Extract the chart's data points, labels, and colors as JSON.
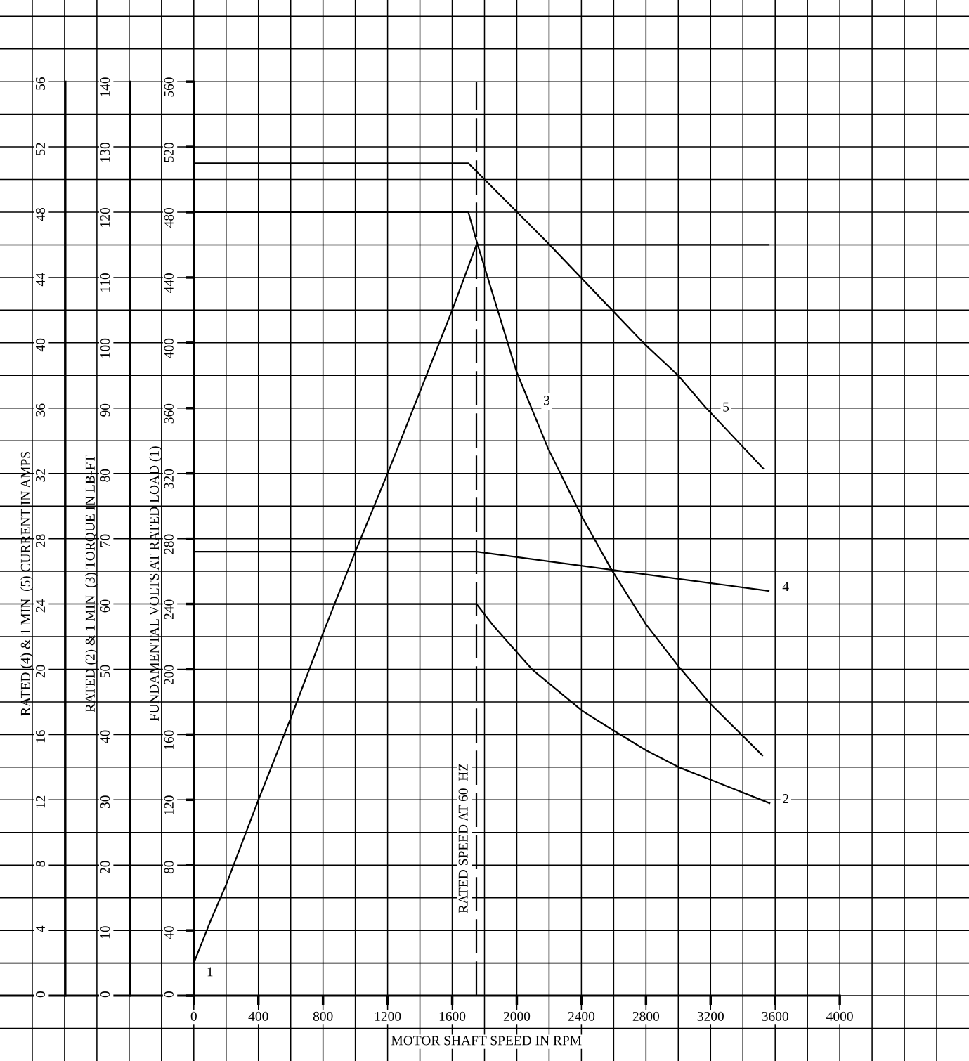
{
  "chart_data": {
    "type": "line",
    "xlabel": "MOTOR SHAFT SPEED IN RPM",
    "ylabel": "FUNDAMENTAL VOLTS AT RATED LOAD (1)",
    "y2label": "RATED (2) & 1 MIN  (3) TORQUE IN LB-FT",
    "y3label": "RATED (4) & 1 MIN  (5) CURRENT IN AMPS",
    "xlim": [
      -1200,
      4800
    ],
    "ylim": [
      -40,
      610
    ],
    "y2lim": [
      -10,
      152.5
    ],
    "y3lim": [
      -4,
      61
    ],
    "xticks": [
      {
        "value": -1000,
        "label": null
      },
      {
        "value": -800,
        "label": null
      },
      {
        "value": -600,
        "label": null
      },
      {
        "value": -400,
        "label": null
      },
      {
        "value": -200,
        "label": null
      },
      0,
      {
        "value": 200,
        "label": null
      },
      400,
      {
        "value": 600,
        "label": null
      },
      800,
      {
        "value": 1000,
        "label": null
      },
      1200,
      {
        "value": 1400,
        "label": null
      },
      1600,
      {
        "value": 1800,
        "label": null
      },
      2000,
      {
        "value": 2200,
        "label": null
      },
      2400,
      {
        "value": 2600,
        "label": null
      },
      2800,
      {
        "value": 3000,
        "label": null
      },
      3200,
      {
        "value": 3400,
        "label": null
      },
      3600,
      {
        "value": 3800,
        "label": null
      },
      4000,
      {
        "value": 4200,
        "label": null
      },
      {
        "value": 4400,
        "label": null
      },
      {
        "value": 4600,
        "label": null
      }
    ],
    "yticks": [
      {
        "value": -20,
        "label": null
      },
      0,
      {
        "value": 20,
        "label": null
      },
      40,
      {
        "value": 60,
        "label": null
      },
      80,
      {
        "value": 100,
        "label": null
      },
      120,
      {
        "value": 140,
        "label": null
      },
      160,
      {
        "value": 180,
        "label": null
      },
      200,
      {
        "value": 220,
        "label": null
      },
      240,
      {
        "value": 260,
        "label": null
      },
      280,
      {
        "value": 300,
        "label": null
      },
      320,
      {
        "value": 340,
        "label": null
      },
      360,
      {
        "value": 380,
        "label": null
      },
      400,
      {
        "value": 420,
        "label": null
      },
      440,
      {
        "value": 460,
        "label": null
      },
      480,
      {
        "value": 500,
        "label": null
      },
      520,
      {
        "value": 540,
        "label": null
      },
      560,
      {
        "value": 580,
        "label": null
      },
      {
        "value": 600,
        "label": null
      }
    ],
    "y2ticks": [
      0,
      10,
      20,
      30,
      40,
      50,
      60,
      70,
      80,
      90,
      100,
      110,
      120,
      130,
      140
    ],
    "y3ticks": [
      0,
      4,
      8,
      12,
      16,
      20,
      24,
      28,
      32,
      36,
      40,
      44,
      48,
      52,
      56
    ],
    "grid": true,
    "series": [
      {
        "color": "#000000",
        "axis": "y",
        "x": [
          0,
          100,
          200,
          400,
          600,
          800,
          1000,
          1200,
          1400,
          1600,
          1750,
          3560
        ],
        "values": [
          20,
          45,
          68,
          120,
          170,
          222,
          272,
          320,
          370,
          420,
          460,
          460
        ]
      },
      {
        "color": "#000000",
        "axis": "y2",
        "x": [
          0,
          1750,
          1854,
          2098,
          2407,
          2607,
          2800,
          3003,
          3565
        ],
        "values": [
          60,
          60,
          56.7,
          49.9,
          43.6,
          40.5,
          37.6,
          35,
          29.5
        ]
      },
      {
        "color": "#000000",
        "axis": "y2",
        "x": [
          0,
          1700,
          1754,
          1998,
          2194,
          2400,
          2590,
          2799,
          3003,
          3195,
          3521
        ],
        "values": [
          120,
          120,
          115.3,
          95.6,
          83.8,
          73.5,
          65.1,
          56.9,
          50.4,
          44.8,
          36.8
        ]
      },
      {
        "color": "#000000",
        "axis": "y3",
        "x": [
          0,
          1750,
          3560
        ],
        "values": [
          27.2,
          27.2,
          24.8
        ]
      },
      {
        "color": "#000000",
        "axis": "y3",
        "x": [
          0,
          1700,
          2194,
          2590,
          2794,
          2999,
          3164,
          3526
        ],
        "values": [
          51,
          51,
          46.1,
          42,
          39.9,
          38,
          36.1,
          32.3
        ]
      }
    ],
    "ref_lines": [
      {
        "axis": "x",
        "value": 1750,
        "label": "RATED SPEED AT 60  HZ",
        "color": "#000000",
        "line_style": "dashed"
      }
    ],
    "annotations": [
      {
        "text": "1",
        "x": 100,
        "y": 14
      },
      {
        "text": "2",
        "x": 3665,
        "y": 120
      },
      {
        "text": "3",
        "x": 2185,
        "y": 364
      },
      {
        "text": "4",
        "x": 3665,
        "y": 250
      },
      {
        "text": "5",
        "x": 3295,
        "y": 360
      }
    ]
  }
}
